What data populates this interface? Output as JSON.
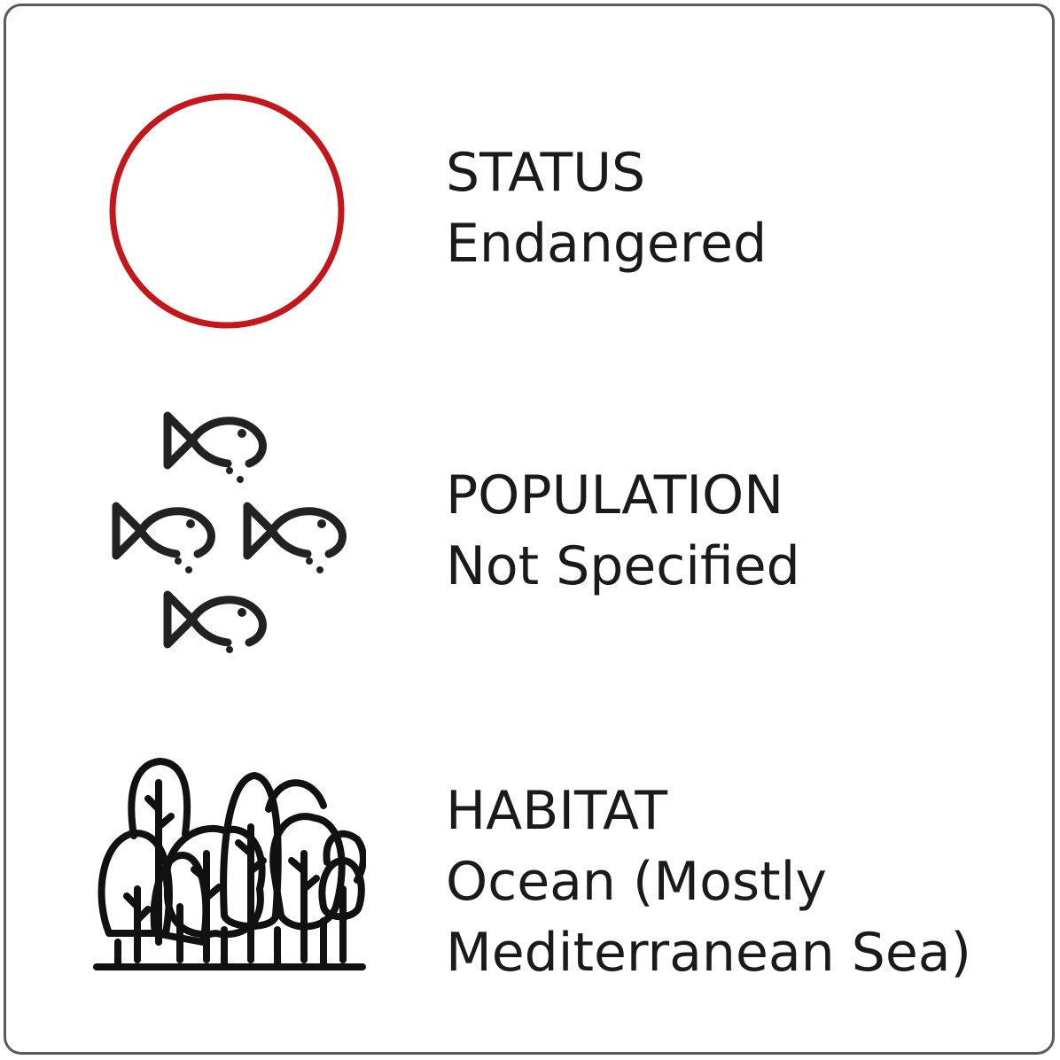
{
  "colors": {
    "status_ring": "#c4171c",
    "icon_ink": "#222222",
    "text": "#1a1a1a",
    "border": "#5a5a5a"
  },
  "rows": [
    {
      "icon": "red-circle-icon",
      "label": "STATUS",
      "value_lines": [
        "Endangered"
      ]
    },
    {
      "icon": "fish-school-icon",
      "label": "POPULATION",
      "value_lines": [
        "Not Specified"
      ]
    },
    {
      "icon": "forest-icon",
      "label": "HABITAT",
      "value_lines": [
        "Ocean (Mostly",
        "Mediterranean Sea)"
      ]
    }
  ]
}
